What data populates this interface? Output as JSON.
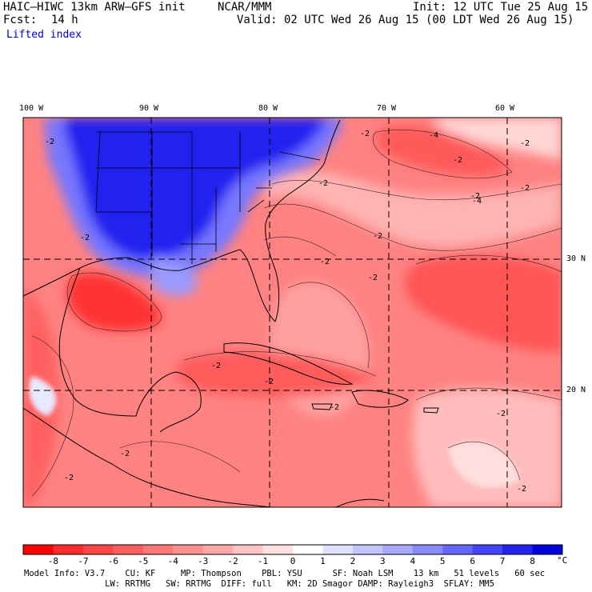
{
  "header": {
    "model": "HAIC–HIWC 13km ARW–GFS init",
    "org": "NCAR/MMM",
    "init": "Init: 12 UTC Tue 25 Aug 15",
    "fcst_label": "Fcst:",
    "fcst_value": "14 h",
    "valid": "Valid: 02 UTC Wed 26 Aug 15 (00 LDT Wed 26 Aug 15)",
    "field": "Lifted index"
  },
  "map": {
    "lon_labels": [
      "100 W",
      "90 W",
      "80 W",
      "70 W",
      "60 W"
    ],
    "lat_labels": [
      "30 N",
      "20 N"
    ],
    "contour_labels": [
      "-2",
      "-2",
      "-2",
      "-4",
      "-2",
      "-2",
      "-2",
      "-2",
      "-2",
      "-2",
      "-4",
      "-2",
      "-2",
      "-2",
      "-2",
      "-2",
      "-2",
      "-2",
      "-2",
      "-2"
    ]
  },
  "colorbar": {
    "ticks": [
      "-8",
      "-7",
      "-6",
      "-5",
      "-4",
      "-3",
      "-2",
      "-1",
      "0",
      "1",
      "2",
      "3",
      "4",
      "5",
      "6",
      "7",
      "8"
    ],
    "unit": "°C",
    "colors": [
      "#ff0000",
      "#ff2a2a",
      "#ff4545",
      "#ff5e5e",
      "#ff7878",
      "#ff9090",
      "#ffa8a8",
      "#ffc4c4",
      "#ffe0e0",
      "#ffffff",
      "#e0e0ff",
      "#c4c4ff",
      "#a8a8ff",
      "#8a8aff",
      "#6666ff",
      "#4444ff",
      "#2222ee",
      "#0000dd"
    ]
  },
  "info": {
    "line1": "Model Info: V3.7    CU: KF     MP: Thompson    PBL: YSU      SF: Noah LSM    13 km   51 levels   60 sec",
    "line2": "                LW: RRTMG   SW: RRTMG  DIFF: full   KM: 2D Smagor DAMP: Rayleigh3  SFLAY: MM5"
  }
}
